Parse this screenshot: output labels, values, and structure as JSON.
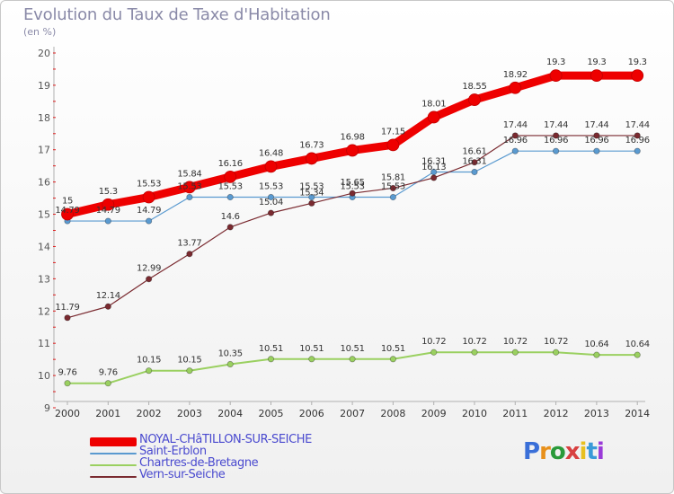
{
  "header": {
    "title": "Evolution du Taux de Taxe d'Habitation",
    "subtitle": "(en %)"
  },
  "logo": {
    "text": "Proxiti",
    "colors": [
      "#3a6fd8",
      "#e8901a",
      "#2a9a3a",
      "#d84040",
      "#e8c020",
      "#3a9ad8",
      "#9a3ad8"
    ]
  },
  "chart_data": {
    "type": "line",
    "x": [
      2000,
      2001,
      2002,
      2003,
      2004,
      2005,
      2006,
      2007,
      2008,
      2009,
      2010,
      2011,
      2012,
      2013,
      2014
    ],
    "ylim": [
      9,
      20
    ],
    "yticks": [
      9,
      10,
      11,
      12,
      13,
      14,
      15,
      16,
      17,
      18,
      19,
      20
    ],
    "grid": false,
    "legend_position": "bottom-left",
    "series": [
      {
        "name": "NOYAL-CHâTILLON-SUR-SEICHE",
        "color": "#ee0000",
        "width": 9,
        "values": [
          15,
          15.3,
          15.53,
          15.84,
          16.16,
          16.48,
          16.73,
          16.98,
          17.15,
          18.01,
          18.55,
          18.92,
          19.3,
          19.3,
          19.3
        ],
        "labels": [
          "15",
          "15.3",
          "15.53",
          "15.84",
          "16.16",
          "16.48",
          "16.73",
          "16.98",
          "17.15",
          "18.01",
          "18.55",
          "18.92",
          "19.3",
          "19.3",
          "19.3"
        ]
      },
      {
        "name": "Saint-Erblon",
        "color": "#5a9ad0",
        "width": 1.2,
        "values": [
          14.79,
          14.79,
          14.79,
          15.53,
          15.53,
          15.53,
          15.53,
          15.53,
          15.53,
          16.31,
          16.31,
          16.96,
          16.96,
          16.96,
          16.96
        ],
        "labels": [
          "14.79",
          "14.79",
          "14.79",
          "15.53",
          "15.53",
          "15.53",
          "15.53",
          "15.53",
          "15.53",
          "16.31",
          "16.31",
          "16.96",
          "16.96",
          "16.96",
          "16.96"
        ]
      },
      {
        "name": "Chartres-de-Bretagne",
        "color": "#9ad060",
        "width": 2,
        "values": [
          9.76,
          9.76,
          10.15,
          10.15,
          10.35,
          10.51,
          10.51,
          10.51,
          10.51,
          10.72,
          10.72,
          10.72,
          10.72,
          10.64,
          10.64
        ],
        "labels": [
          "9.76",
          "9.76",
          "10.15",
          "10.15",
          "10.35",
          "10.51",
          "10.51",
          "10.51",
          "10.51",
          "10.72",
          "10.72",
          "10.72",
          "10.72",
          "10.64",
          "10.64"
        ]
      },
      {
        "name": "Vern-sur-Seiche",
        "color": "#7a2a30",
        "width": 1.2,
        "values": [
          11.79,
          12.14,
          12.99,
          13.77,
          14.6,
          15.04,
          15.34,
          15.65,
          15.81,
          16.13,
          16.61,
          17.44,
          17.44,
          17.44,
          17.44
        ],
        "labels": [
          "11.79",
          "12.14",
          "12.99",
          "13.77",
          "14.6",
          "15.04",
          "15.34",
          "15.65",
          "15.81",
          "16.13",
          "16.61",
          "17.44",
          "17.44",
          "17.44",
          "17.44"
        ]
      }
    ]
  }
}
